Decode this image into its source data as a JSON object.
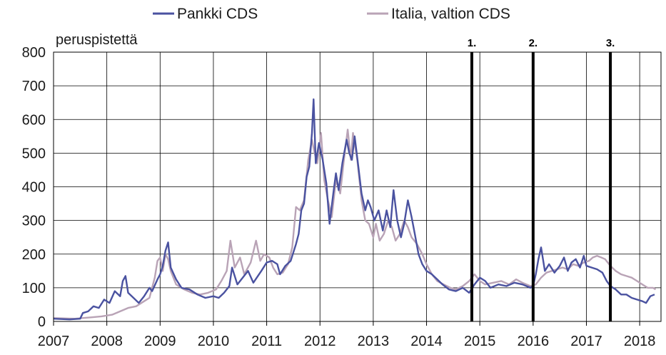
{
  "chart_data": {
    "type": "line",
    "ylabel": "peruspistettä",
    "ylim": [
      0,
      800
    ],
    "yticks": [
      "0",
      "100",
      "200",
      "300",
      "400",
      "500",
      "600",
      "700",
      "800"
    ],
    "xlim": [
      2007,
      2018.4
    ],
    "xticks": [
      "2007",
      "2008",
      "2009",
      "2010",
      "2011",
      "2012",
      "2013",
      "2014",
      "2015",
      "2016",
      "2017",
      "2018"
    ],
    "grid": true,
    "legend_position": "top",
    "markers": [
      {
        "label": "1.",
        "x": 2014.85
      },
      {
        "label": "2.",
        "x": 2016.0
      },
      {
        "label": "3.",
        "x": 2017.45
      }
    ],
    "series": [
      {
        "name": "Pankki CDS",
        "color": "#4a52a0",
        "points": [
          [
            2007.0,
            8
          ],
          [
            2007.3,
            6
          ],
          [
            2007.5,
            8
          ],
          [
            2007.55,
            25
          ],
          [
            2007.65,
            30
          ],
          [
            2007.75,
            45
          ],
          [
            2007.85,
            40
          ],
          [
            2007.95,
            65
          ],
          [
            2008.05,
            55
          ],
          [
            2008.15,
            90
          ],
          [
            2008.25,
            75
          ],
          [
            2008.3,
            120
          ],
          [
            2008.35,
            135
          ],
          [
            2008.4,
            85
          ],
          [
            2008.5,
            70
          ],
          [
            2008.6,
            55
          ],
          [
            2008.7,
            75
          ],
          [
            2008.8,
            100
          ],
          [
            2008.85,
            90
          ],
          [
            2008.95,
            125
          ],
          [
            2009.0,
            140
          ],
          [
            2009.05,
            165
          ],
          [
            2009.1,
            210
          ],
          [
            2009.15,
            235
          ],
          [
            2009.2,
            160
          ],
          [
            2009.3,
            125
          ],
          [
            2009.4,
            100
          ],
          [
            2009.55,
            95
          ],
          [
            2009.7,
            80
          ],
          [
            2009.85,
            70
          ],
          [
            2010.0,
            75
          ],
          [
            2010.1,
            70
          ],
          [
            2010.2,
            85
          ],
          [
            2010.3,
            105
          ],
          [
            2010.35,
            160
          ],
          [
            2010.45,
            110
          ],
          [
            2010.55,
            130
          ],
          [
            2010.65,
            150
          ],
          [
            2010.75,
            115
          ],
          [
            2010.9,
            150
          ],
          [
            2011.0,
            175
          ],
          [
            2011.1,
            180
          ],
          [
            2011.2,
            170
          ],
          [
            2011.25,
            140
          ],
          [
            2011.35,
            165
          ],
          [
            2011.45,
            180
          ],
          [
            2011.55,
            230
          ],
          [
            2011.6,
            260
          ],
          [
            2011.65,
            330
          ],
          [
            2011.7,
            350
          ],
          [
            2011.75,
            430
          ],
          [
            2011.8,
            460
          ],
          [
            2011.85,
            560
          ],
          [
            2011.88,
            660
          ],
          [
            2011.92,
            470
          ],
          [
            2011.98,
            530
          ],
          [
            2012.05,
            480
          ],
          [
            2012.12,
            410
          ],
          [
            2012.18,
            290
          ],
          [
            2012.25,
            380
          ],
          [
            2012.3,
            440
          ],
          [
            2012.35,
            390
          ],
          [
            2012.42,
            470
          ],
          [
            2012.5,
            540
          ],
          [
            2012.55,
            500
          ],
          [
            2012.6,
            480
          ],
          [
            2012.65,
            550
          ],
          [
            2012.72,
            460
          ],
          [
            2012.78,
            380
          ],
          [
            2012.85,
            330
          ],
          [
            2012.9,
            360
          ],
          [
            2012.95,
            340
          ],
          [
            2013.02,
            300
          ],
          [
            2013.1,
            330
          ],
          [
            2013.18,
            270
          ],
          [
            2013.25,
            330
          ],
          [
            2013.32,
            280
          ],
          [
            2013.38,
            390
          ],
          [
            2013.45,
            300
          ],
          [
            2013.52,
            250
          ],
          [
            2013.58,
            290
          ],
          [
            2013.65,
            360
          ],
          [
            2013.72,
            310
          ],
          [
            2013.78,
            260
          ],
          [
            2013.85,
            200
          ],
          [
            2013.92,
            170
          ],
          [
            2014.0,
            150
          ],
          [
            2014.1,
            140
          ],
          [
            2014.2,
            125
          ],
          [
            2014.3,
            110
          ],
          [
            2014.42,
            95
          ],
          [
            2014.55,
            90
          ],
          [
            2014.68,
            100
          ],
          [
            2014.8,
            85
          ],
          [
            2014.9,
            110
          ],
          [
            2015.0,
            130
          ],
          [
            2015.1,
            120
          ],
          [
            2015.2,
            100
          ],
          [
            2015.35,
            110
          ],
          [
            2015.5,
            105
          ],
          [
            2015.65,
            115
          ],
          [
            2015.8,
            110
          ],
          [
            2015.95,
            100
          ],
          [
            2016.0,
            105
          ],
          [
            2016.05,
            140
          ],
          [
            2016.1,
            185
          ],
          [
            2016.15,
            220
          ],
          [
            2016.22,
            150
          ],
          [
            2016.3,
            170
          ],
          [
            2016.4,
            145
          ],
          [
            2016.5,
            165
          ],
          [
            2016.58,
            190
          ],
          [
            2016.65,
            150
          ],
          [
            2016.72,
            175
          ],
          [
            2016.8,
            185
          ],
          [
            2016.88,
            160
          ],
          [
            2016.95,
            195
          ],
          [
            2017.0,
            165
          ],
          [
            2017.1,
            160
          ],
          [
            2017.2,
            155
          ],
          [
            2017.3,
            145
          ],
          [
            2017.38,
            120
          ],
          [
            2017.45,
            105
          ],
          [
            2017.55,
            95
          ],
          [
            2017.65,
            80
          ],
          [
            2017.75,
            80
          ],
          [
            2017.85,
            70
          ],
          [
            2017.95,
            65
          ],
          [
            2018.05,
            60
          ],
          [
            2018.12,
            55
          ],
          [
            2018.2,
            75
          ],
          [
            2018.28,
            80
          ]
        ]
      },
      {
        "name": "Italia, valtion CDS",
        "color": "#b9a3b6",
        "points": [
          [
            2007.0,
            10
          ],
          [
            2007.4,
            8
          ],
          [
            2007.7,
            12
          ],
          [
            2007.9,
            15
          ],
          [
            2008.1,
            20
          ],
          [
            2008.25,
            30
          ],
          [
            2008.4,
            40
          ],
          [
            2008.55,
            45
          ],
          [
            2008.7,
            60
          ],
          [
            2008.8,
            70
          ],
          [
            2008.9,
            130
          ],
          [
            2008.95,
            180
          ],
          [
            2009.0,
            190
          ],
          [
            2009.05,
            150
          ],
          [
            2009.1,
            200
          ],
          [
            2009.15,
            185
          ],
          [
            2009.2,
            150
          ],
          [
            2009.3,
            110
          ],
          [
            2009.45,
            95
          ],
          [
            2009.6,
            85
          ],
          [
            2009.75,
            80
          ],
          [
            2009.9,
            85
          ],
          [
            2010.05,
            95
          ],
          [
            2010.15,
            120
          ],
          [
            2010.25,
            150
          ],
          [
            2010.32,
            240
          ],
          [
            2010.4,
            160
          ],
          [
            2010.5,
            190
          ],
          [
            2010.58,
            140
          ],
          [
            2010.7,
            175
          ],
          [
            2010.8,
            240
          ],
          [
            2010.88,
            180
          ],
          [
            2010.95,
            200
          ],
          [
            2011.05,
            190
          ],
          [
            2011.12,
            160
          ],
          [
            2011.2,
            140
          ],
          [
            2011.3,
            145
          ],
          [
            2011.4,
            170
          ],
          [
            2011.48,
            220
          ],
          [
            2011.55,
            340
          ],
          [
            2011.62,
            330
          ],
          [
            2011.7,
            360
          ],
          [
            2011.78,
            480
          ],
          [
            2011.85,
            540
          ],
          [
            2011.9,
            500
          ],
          [
            2011.95,
            470
          ],
          [
            2012.02,
            560
          ],
          [
            2012.08,
            420
          ],
          [
            2012.15,
            360
          ],
          [
            2012.22,
            310
          ],
          [
            2012.3,
            420
          ],
          [
            2012.38,
            380
          ],
          [
            2012.45,
            480
          ],
          [
            2012.52,
            570
          ],
          [
            2012.58,
            480
          ],
          [
            2012.62,
            560
          ],
          [
            2012.7,
            480
          ],
          [
            2012.78,
            360
          ],
          [
            2012.85,
            300
          ],
          [
            2012.92,
            290
          ],
          [
            2013.0,
            250
          ],
          [
            2013.05,
            290
          ],
          [
            2013.12,
            240
          ],
          [
            2013.2,
            260
          ],
          [
            2013.28,
            300
          ],
          [
            2013.35,
            280
          ],
          [
            2013.42,
            240
          ],
          [
            2013.5,
            260
          ],
          [
            2013.58,
            300
          ],
          [
            2013.65,
            280
          ],
          [
            2013.72,
            250
          ],
          [
            2013.82,
            230
          ],
          [
            2013.92,
            200
          ],
          [
            2014.0,
            170
          ],
          [
            2014.1,
            140
          ],
          [
            2014.2,
            120
          ],
          [
            2014.32,
            110
          ],
          [
            2014.45,
            100
          ],
          [
            2014.55,
            95
          ],
          [
            2014.68,
            105
          ],
          [
            2014.8,
            120
          ],
          [
            2014.9,
            140
          ],
          [
            2015.0,
            120
          ],
          [
            2015.1,
            110
          ],
          [
            2015.25,
            115
          ],
          [
            2015.4,
            120
          ],
          [
            2015.55,
            110
          ],
          [
            2015.68,
            125
          ],
          [
            2015.8,
            115
          ],
          [
            2015.95,
            105
          ],
          [
            2016.05,
            110
          ],
          [
            2016.15,
            130
          ],
          [
            2016.25,
            145
          ],
          [
            2016.35,
            150
          ],
          [
            2016.45,
            155
          ],
          [
            2016.55,
            160
          ],
          [
            2016.65,
            155
          ],
          [
            2016.75,
            170
          ],
          [
            2016.85,
            165
          ],
          [
            2016.95,
            175
          ],
          [
            2017.05,
            180
          ],
          [
            2017.12,
            190
          ],
          [
            2017.2,
            195
          ],
          [
            2017.28,
            190
          ],
          [
            2017.35,
            185
          ],
          [
            2017.45,
            165
          ],
          [
            2017.55,
            150
          ],
          [
            2017.65,
            140
          ],
          [
            2017.75,
            135
          ],
          [
            2017.85,
            130
          ],
          [
            2017.95,
            120
          ],
          [
            2018.05,
            110
          ],
          [
            2018.15,
            100
          ],
          [
            2018.25,
            100
          ],
          [
            2018.3,
            95
          ]
        ]
      }
    ]
  }
}
